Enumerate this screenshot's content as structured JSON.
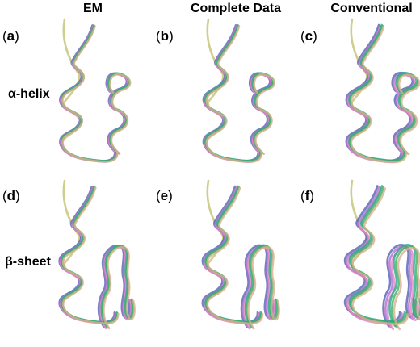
{
  "columns": [
    "EM",
    "Complete Data",
    "Conventional"
  ],
  "rows": [
    "α-helix",
    "β-sheet"
  ],
  "panels": [
    {
      "label": "a",
      "row": 0,
      "col": 0
    },
    {
      "label": "b",
      "row": 0,
      "col": 1
    },
    {
      "label": "c",
      "row": 0,
      "col": 2
    },
    {
      "label": "d",
      "row": 1,
      "col": 0
    },
    {
      "label": "e",
      "row": 1,
      "col": 1
    },
    {
      "label": "f",
      "row": 1,
      "col": 2
    }
  ],
  "colors": {
    "reference": "#c8c67a",
    "blue": "#5560b5",
    "purple": "#b06ed0",
    "pink": "#e08ac0",
    "teal": "#2aa98a",
    "green": "#40b060",
    "tan": "#d6b08e"
  }
}
